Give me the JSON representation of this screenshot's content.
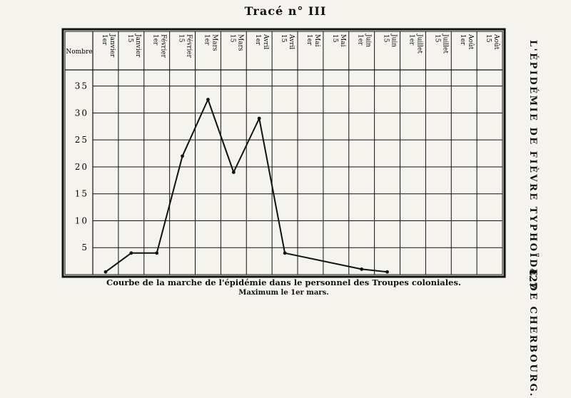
{
  "page": {
    "title": "Tracé n° III",
    "side_title": "L'ÉPIDÉMIE DE FIÈVRE TYPHOÏDE DE CHERBOURG.",
    "page_number": "427",
    "caption": "Courbe de la marche de l'épidémie dans le personnel des Troupes coloniales.",
    "subcaption": "Maximum le 1er mars."
  },
  "chart_data": {
    "type": "line",
    "title": "",
    "xlabel": "",
    "ylabel": "",
    "row_header": "Nombre",
    "categories": [
      "1er Janvier",
      "15 Janvier",
      "1er Février",
      "15 Février",
      "1er Mars",
      "15 Mars",
      "1er Avril",
      "15 Avril",
      "1er Mai",
      "15 Mai",
      "1er Juin",
      "15 Juin",
      "1er Juillet",
      "15 Juillet",
      "1er Août",
      "15 Août"
    ],
    "yticks": [
      "35",
      "30",
      "25",
      "20",
      "15",
      "10",
      "5"
    ],
    "ylim": [
      0,
      38
    ],
    "grid": true,
    "series": [
      {
        "name": "",
        "points": [
          {
            "x": "1er Janvier",
            "y": 0.5
          },
          {
            "x": "15 Janvier",
            "y": 4
          },
          {
            "x": "1er Février",
            "y": 4
          },
          {
            "x": "15 Février",
            "y": 22
          },
          {
            "x": "1er Mars",
            "y": 32.5
          },
          {
            "x": "15 Mars",
            "y": 19
          },
          {
            "x": "1er Avril",
            "y": 29
          },
          {
            "x": "15 Avril",
            "y": 4
          },
          {
            "x": "1er Juin",
            "y": 1
          },
          {
            "x": "15 Juin",
            "y": 0.5
          }
        ]
      }
    ]
  }
}
